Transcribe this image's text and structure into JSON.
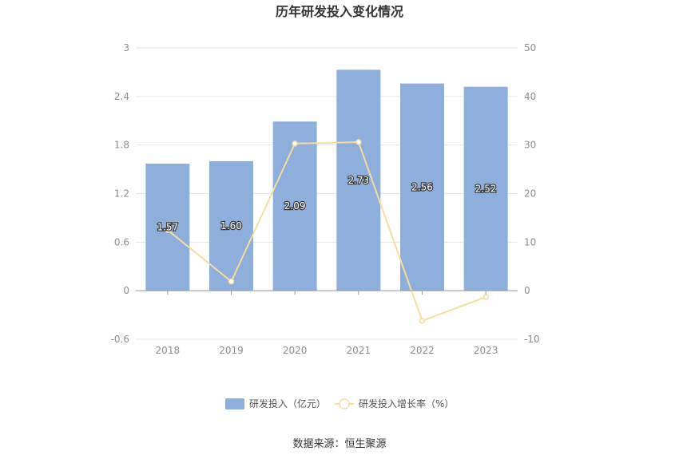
{
  "title": "历年研发投入变化情况",
  "source": "数据来源：恒生聚源",
  "colors": {
    "bar": "#8eaedb",
    "line": "#f8dca0",
    "grid": "#e6e6e6",
    "axis": "#999999"
  },
  "chart_data": {
    "type": "bar",
    "categories": [
      "2018",
      "2019",
      "2020",
      "2021",
      "2022",
      "2023"
    ],
    "series": [
      {
        "name": "研发投入（亿元）",
        "type": "bar",
        "axis": "left",
        "values": [
          1.57,
          1.6,
          2.09,
          2.73,
          2.56,
          2.52
        ],
        "labels": [
          "1.57",
          "1.60",
          "2.09",
          "2.73",
          "2.56",
          "2.52"
        ]
      },
      {
        "name": "研发投入增长率（%）",
        "type": "line",
        "axis": "right",
        "values": [
          12.5,
          1.9,
          30.3,
          30.6,
          -6.2,
          -1.3
        ]
      }
    ],
    "y_left": {
      "min": -0.6,
      "max": 3,
      "ticks": [
        "-0.6",
        "0",
        "0.6",
        "1.2",
        "1.8",
        "2.4",
        "3"
      ]
    },
    "y_right": {
      "min": -10,
      "max": 50,
      "ticks": [
        "-10",
        "0",
        "10",
        "20",
        "30",
        "40",
        "50"
      ]
    },
    "grid": true,
    "legend": "bottom"
  }
}
